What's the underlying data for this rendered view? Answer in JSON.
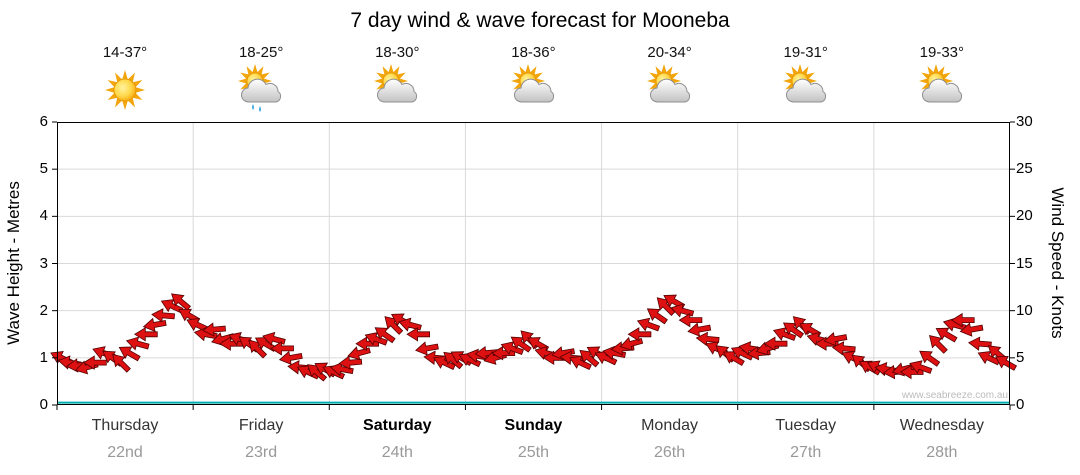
{
  "title": "7 day wind & wave forecast for Mooneba",
  "watermark": "www.seabreeze.com.au",
  "days": [
    {
      "name": "Thursday",
      "date": "22nd",
      "temp": "14-37°",
      "icon": "sunny",
      "bold": false
    },
    {
      "name": "Friday",
      "date": "23rd",
      "temp": "18-25°",
      "icon": "partly-cloudy-rain",
      "bold": false
    },
    {
      "name": "Saturday",
      "date": "24th",
      "temp": "18-30°",
      "icon": "partly-cloudy",
      "bold": true
    },
    {
      "name": "Sunday",
      "date": "25th",
      "temp": "18-36°",
      "icon": "partly-cloudy",
      "bold": true
    },
    {
      "name": "Monday",
      "date": "26th",
      "temp": "20-34°",
      "icon": "partly-cloudy",
      "bold": false
    },
    {
      "name": "Tuesday",
      "date": "27th",
      "temp": "19-31°",
      "icon": "partly-cloudy",
      "bold": false
    },
    {
      "name": "Wednesday",
      "date": "28th",
      "temp": "19-33°",
      "icon": "partly-cloudy",
      "bold": false
    }
  ],
  "chart_data": {
    "type": "line",
    "title": "7 day wind & wave forecast for Mooneba",
    "grid": true,
    "legend": "none",
    "x_axis": {
      "unit": "days",
      "total_hours": 168,
      "categories": [
        "Thursday 22nd",
        "Friday 23rd",
        "Saturday 24th",
        "Sunday 25th",
        "Monday 26th",
        "Tuesday 27th",
        "Wednesday 28th"
      ]
    },
    "y_left": {
      "label": "Wave Height - Metres",
      "min": 0,
      "max": 6,
      "step": 1
    },
    "y_right": {
      "label": "Wind Speed - Knots",
      "min": 0,
      "max": 30,
      "step": 5
    },
    "series": [
      {
        "name": "Wind Speed",
        "axis": "right",
        "unit": "knots",
        "marker": "direction-arrow",
        "color": "#dd1111",
        "outline": "#550000",
        "values": [
          5,
          4.5,
          4.2,
          4,
          4.5,
          5.5,
          5,
          4.5,
          5.5,
          6.5,
          7.5,
          8.5,
          9.5,
          10.5,
          11,
          9.5,
          8.5,
          7.5,
          8,
          7,
          6.5,
          7,
          6.5,
          6,
          6.5,
          7,
          6,
          5,
          4,
          3.5,
          3.5,
          3.8,
          3.5,
          3.8,
          4.5,
          5.5,
          6.5,
          7,
          7.5,
          8.5,
          9,
          8.5,
          7.5,
          6,
          5,
          4.5,
          4.8,
          5,
          4.8,
          5.2,
          5.5,
          5,
          5.5,
          6,
          6.5,
          7,
          6.5,
          5.5,
          5,
          5.5,
          5,
          4.5,
          5,
          5.5,
          5,
          5.5,
          6,
          6.5,
          7.5,
          8.5,
          9.5,
          10.5,
          11,
          10,
          9,
          8,
          7,
          6,
          5.5,
          5,
          5.5,
          6,
          5.5,
          6,
          6.5,
          7.5,
          8,
          8.5,
          8,
          7,
          6.5,
          7,
          6,
          5,
          4.5,
          4,
          4,
          3.8,
          3.5,
          3.8,
          3.5,
          4,
          5,
          6.5,
          7.5,
          8.5,
          9,
          8,
          6.5,
          5,
          5.5,
          4.5
        ],
        "directions_deg": [
          205,
          190,
          175,
          165,
          180,
          200,
          215,
          225,
          210,
          195,
          180,
          170,
          185,
          205,
          220,
          210,
          205,
          190,
          175,
          165,
          180,
          200,
          215,
          225,
          210,
          195,
          180,
          170,
          185,
          205,
          220,
          210,
          205,
          190,
          175,
          165,
          180,
          200,
          215,
          225,
          210,
          195,
          180,
          170,
          185,
          205,
          220,
          210,
          205,
          190,
          175,
          165,
          180,
          200,
          215,
          225,
          210,
          195,
          180,
          170,
          185,
          205,
          220,
          210,
          205,
          190,
          175,
          165,
          180,
          200,
          215,
          225,
          210,
          195,
          180,
          170,
          185,
          205,
          220,
          210,
          205,
          190,
          175,
          165,
          180,
          200,
          215,
          225,
          210,
          195,
          180,
          170,
          185,
          205,
          220,
          210,
          205,
          190,
          175,
          165,
          180,
          200,
          215,
          225,
          210,
          195,
          180,
          170,
          185,
          205,
          220,
          210
        ]
      },
      {
        "name": "Wave Height",
        "axis": "left",
        "unit": "metres",
        "color": "#00AEAE",
        "values_constant": 0.05
      }
    ]
  }
}
